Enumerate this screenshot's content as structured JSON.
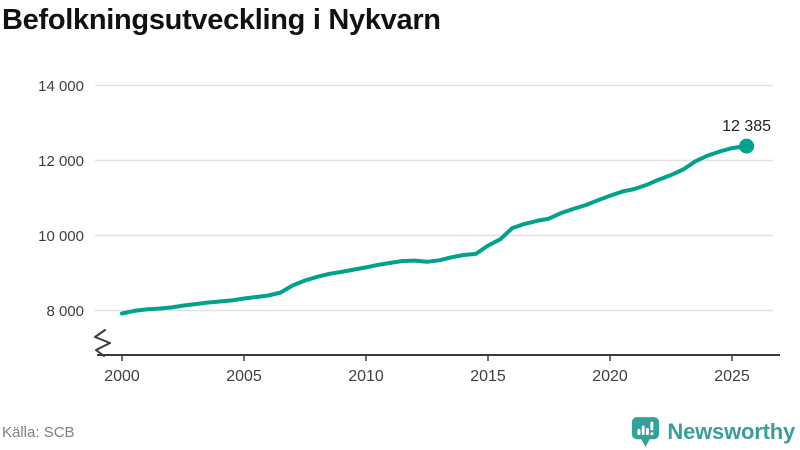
{
  "title": "Befolkningsutveckling i Nykvarn",
  "source": "Källa: SCB",
  "logo": {
    "name": "Newsworthy"
  },
  "colors": {
    "line": "#00a18e",
    "grid": "#e2e2e2",
    "axis": "#3a3a3a",
    "tick_text": "#3f3f3f",
    "end_label_text": "#222222",
    "logo_teal": "#38a09a",
    "title_text": "#111111",
    "source_text": "#808080"
  },
  "chart_data": {
    "type": "line",
    "title": "Befolkningsutveckling i Nykvarn",
    "series_name": "Befolkning",
    "points": [
      [
        2000,
        7920
      ],
      [
        2000.5,
        7990
      ],
      [
        2001,
        8030
      ],
      [
        2001.5,
        8050
      ],
      [
        2002,
        8080
      ],
      [
        2002.5,
        8130
      ],
      [
        2003,
        8170
      ],
      [
        2003.5,
        8210
      ],
      [
        2004,
        8240
      ],
      [
        2004.5,
        8270
      ],
      [
        2005,
        8320
      ],
      [
        2005.5,
        8360
      ],
      [
        2006,
        8400
      ],
      [
        2006.5,
        8480
      ],
      [
        2007,
        8670
      ],
      [
        2007.5,
        8800
      ],
      [
        2008,
        8900
      ],
      [
        2008.5,
        8980
      ],
      [
        2009,
        9030
      ],
      [
        2009.5,
        9090
      ],
      [
        2010,
        9150
      ],
      [
        2010.5,
        9220
      ],
      [
        2011,
        9270
      ],
      [
        2011.5,
        9320
      ],
      [
        2012,
        9330
      ],
      [
        2012.5,
        9300
      ],
      [
        2013,
        9340
      ],
      [
        2013.5,
        9420
      ],
      [
        2014,
        9480
      ],
      [
        2014.5,
        9510
      ],
      [
        2015,
        9730
      ],
      [
        2015.5,
        9900
      ],
      [
        2016,
        10200
      ],
      [
        2016.5,
        10310
      ],
      [
        2017,
        10390
      ],
      [
        2017.5,
        10450
      ],
      [
        2018,
        10600
      ],
      [
        2018.5,
        10710
      ],
      [
        2019,
        10810
      ],
      [
        2019.5,
        10940
      ],
      [
        2020,
        11060
      ],
      [
        2020.5,
        11170
      ],
      [
        2021,
        11240
      ],
      [
        2021.5,
        11350
      ],
      [
        2022,
        11490
      ],
      [
        2022.5,
        11610
      ],
      [
        2023,
        11760
      ],
      [
        2023.5,
        11980
      ],
      [
        2024,
        12130
      ],
      [
        2024.5,
        12240
      ],
      [
        2025,
        12330
      ],
      [
        2025.6,
        12385
      ]
    ],
    "end_value": 12385,
    "end_label": "12 385",
    "x_ticks": [
      {
        "value": 2000,
        "label": "2000"
      },
      {
        "value": 2005,
        "label": "2005"
      },
      {
        "value": 2010,
        "label": "2010"
      },
      {
        "value": 2015,
        "label": "2015"
      },
      {
        "value": 2020,
        "label": "2020"
      },
      {
        "value": 2025,
        "label": "2025"
      }
    ],
    "y_ticks": [
      {
        "value": 8000,
        "label": "8 000"
      },
      {
        "value": 10000,
        "label": "10 000"
      },
      {
        "value": 12000,
        "label": "12 000"
      },
      {
        "value": 14000,
        "label": "14 000"
      }
    ],
    "xlim": [
      2000,
      2026.2
    ],
    "ylim": [
      8000,
      14000
    ],
    "y_axis_break": true,
    "grid": "horizontal",
    "legend": "none",
    "xlabel": "",
    "ylabel": ""
  }
}
